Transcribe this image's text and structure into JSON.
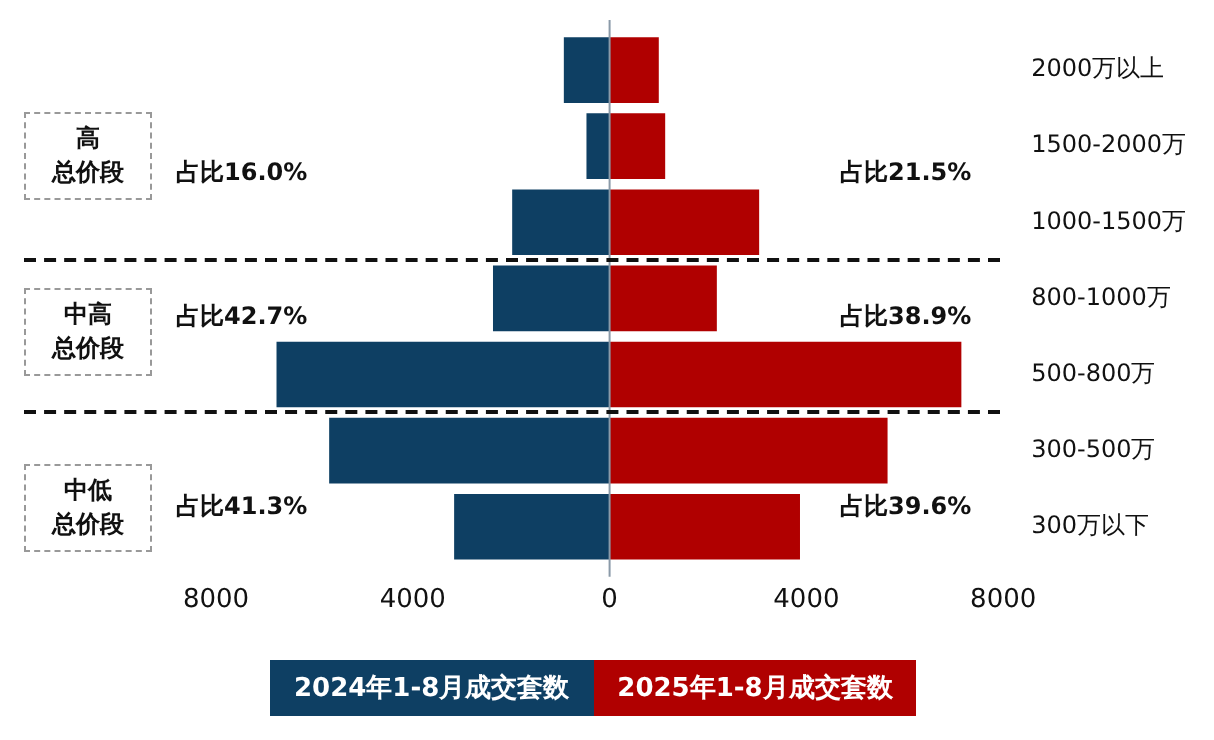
{
  "chart_data": {
    "type": "bar",
    "orientation": "horizontal",
    "stacked": true,
    "categories": [
      "2000万以上",
      "1500-2000万",
      "1000-1500万",
      "800-1000万",
      "500-800万",
      "300-500万",
      "300万以下"
    ],
    "series": [
      {
        "name": "2024年1-8月成交套数",
        "color": "#0e3f63",
        "values": [
          -930,
          -470,
          -1980,
          -2370,
          -6770,
          -5700,
          -3160
        ]
      },
      {
        "name": "2025年1-8月成交套数",
        "color": "#b00000",
        "values": [
          1000,
          1130,
          3040,
          2180,
          7150,
          5650,
          3870
        ]
      }
    ],
    "xlim": [
      -8000,
      8000
    ],
    "xticks": [
      {
        "value": -8000,
        "label": "8000"
      },
      {
        "value": -4000,
        "label": "4000"
      },
      0,
      4000,
      8000
    ],
    "grid": false,
    "legend": "bottom",
    "annotations": [
      "高总价段",
      "中高总价段",
      "中低总价段",
      "占比16.0%",
      "占比21.5%",
      "占比42.7%",
      "占比38.9%",
      "占比41.3%",
      "占比39.6%"
    ]
  }
}
